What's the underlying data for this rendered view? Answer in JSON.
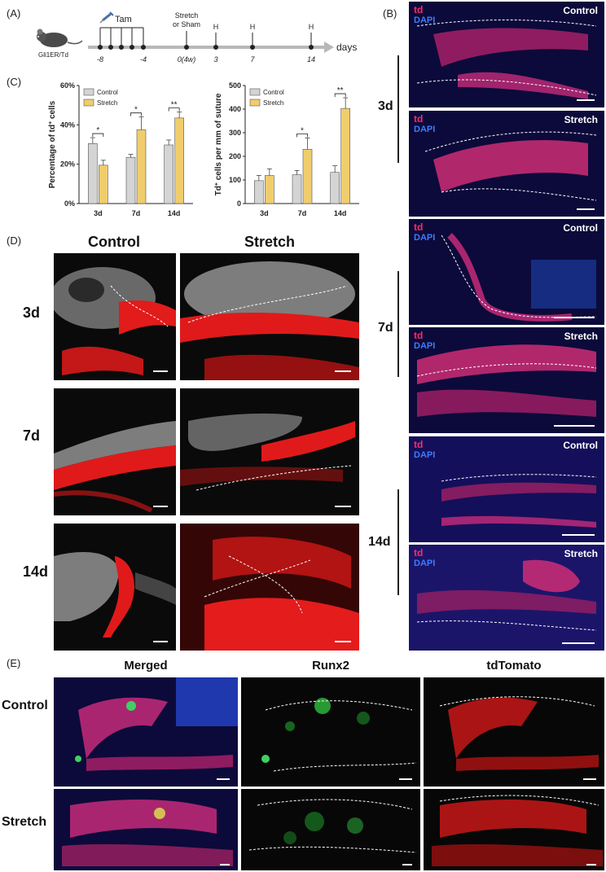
{
  "panels": {
    "A": "(A)",
    "B": "(B)",
    "C": "(C)",
    "D": "(D)",
    "E": "(E)"
  },
  "timeline": {
    "mouse_label": "Gli1ER/Td",
    "tam_label": "Tam",
    "stretch_label_line1": "Stretch",
    "stretch_label_line2": "or Sham",
    "harvest_label": "H",
    "axis_label": "days",
    "ticks": [
      "-8",
      "-4",
      "0(4w)",
      "3",
      "7",
      "14"
    ]
  },
  "colors": {
    "control": "#d4d4d4",
    "stretch": "#f0cd6c",
    "td": "#ff2a6a",
    "dapi": "#3d7bff"
  },
  "chart_data": [
    {
      "type": "bar",
      "categories": [
        "3d",
        "7d",
        "14d"
      ],
      "series": [
        {
          "name": "Control",
          "values": [
            30.5,
            23.5,
            29.8
          ],
          "errors": [
            3.0,
            1.5,
            2.5
          ]
        },
        {
          "name": "Stretch",
          "values": [
            19.5,
            37.5,
            43.5
          ],
          "errors": [
            2.5,
            6.5,
            3.0
          ]
        }
      ],
      "ylabel_prefix": "Percentage of td",
      "ylabel_sup": "+",
      "ylabel_suffix": " cells",
      "yticks": [
        "0%",
        "20%",
        "40%",
        "60%"
      ],
      "ylim": [
        0,
        60
      ],
      "significance": [
        "*",
        "*",
        "**"
      ],
      "legend": "top-left"
    },
    {
      "type": "bar",
      "categories": [
        "3d",
        "7d",
        "14d"
      ],
      "series": [
        {
          "name": "Control",
          "values": [
            97,
            122,
            132
          ],
          "errors": [
            22,
            18,
            28
          ]
        },
        {
          "name": "Stretch",
          "values": [
            119,
            230,
            403
          ],
          "errors": [
            28,
            48,
            45
          ]
        }
      ],
      "ylabel_prefix": "Td",
      "ylabel_sup": "+",
      "ylabel_suffix": " cells per mm of suture",
      "yticks": [
        "0",
        "100",
        "200",
        "300",
        "400",
        "500"
      ],
      "ylim": [
        0,
        500
      ],
      "significance": [
        "",
        "*",
        "**"
      ],
      "legend": "top-left"
    }
  ],
  "panelB": {
    "td": "td",
    "dapi": "DAPI",
    "rows": [
      {
        "day": "3d",
        "top": "Control",
        "bottom": "Stretch"
      },
      {
        "day": "7d",
        "top": "Control",
        "bottom": "Stretch"
      },
      {
        "day": "14d",
        "top": "Control",
        "bottom": "Stretch"
      }
    ]
  },
  "panelD": {
    "columns": [
      "Control",
      "Stretch"
    ],
    "rows": [
      "3d",
      "7d",
      "14d"
    ]
  },
  "panelE": {
    "columns": [
      "Merged",
      "Runx2",
      "tdTomato"
    ],
    "rows": [
      "Control",
      "Stretch"
    ]
  }
}
